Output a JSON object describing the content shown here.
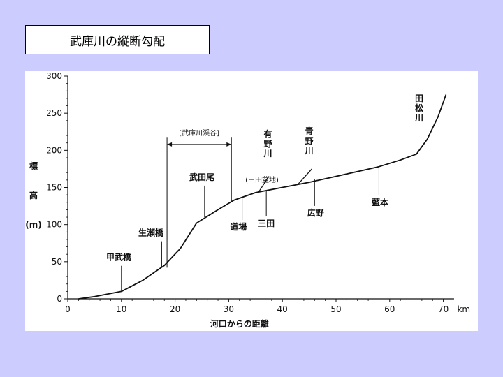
{
  "slide": {
    "title": "武庫川の縦断勾配"
  },
  "chart_data": {
    "type": "line",
    "title": "",
    "xlabel": "河口からの距離",
    "x_unit": "km",
    "ylabel": [
      "標",
      "高",
      "(m)"
    ],
    "xlim": [
      0,
      72
    ],
    "ylim": [
      0,
      300
    ],
    "x_ticks": [
      "0",
      "10",
      "20",
      "30",
      "40",
      "50",
      "60",
      "70"
    ],
    "y_ticks": [
      "0",
      "50",
      "100",
      "150",
      "200",
      "250",
      "300"
    ],
    "grid": false,
    "series": [
      {
        "x": [
          2,
          5,
          10,
          14,
          18,
          21,
          24,
          28,
          31,
          35,
          40,
          45,
          50,
          55,
          58,
          62,
          65,
          67,
          69,
          70.5
        ],
        "y": [
          0,
          3,
          10,
          25,
          45,
          68,
          102,
          120,
          133,
          143,
          150,
          157,
          165,
          173,
          178,
          187,
          195,
          215,
          245,
          275
        ]
      }
    ],
    "annotations": [
      {
        "text": "甲武橋",
        "x": 10,
        "y": 10
      },
      {
        "text": "生瀬橋",
        "x": 17.5,
        "y": 42
      },
      {
        "text": "武田尾",
        "x": 25.5,
        "y": 110
      },
      {
        "text": "道場",
        "x": 32.5,
        "y": 138
      },
      {
        "text": "三田",
        "x": 37,
        "y": 146
      },
      {
        "text": "広野",
        "x": 46,
        "y": 161
      },
      {
        "text": "藍本",
        "x": 58,
        "y": 178
      }
    ],
    "tributaries": [
      {
        "text": "有野川",
        "x": 35.5,
        "y": 143
      },
      {
        "text": "青野川",
        "x": 43,
        "y": 155
      },
      {
        "text": "田松川",
        "x": 65,
        "y": 195
      }
    ],
    "region_labels": [
      {
        "text": "[武庫川渓谷]",
        "x_start": 18.5,
        "x_end": 30.5
      },
      {
        "text": "(三田盆地)",
        "x": 36
      }
    ]
  }
}
